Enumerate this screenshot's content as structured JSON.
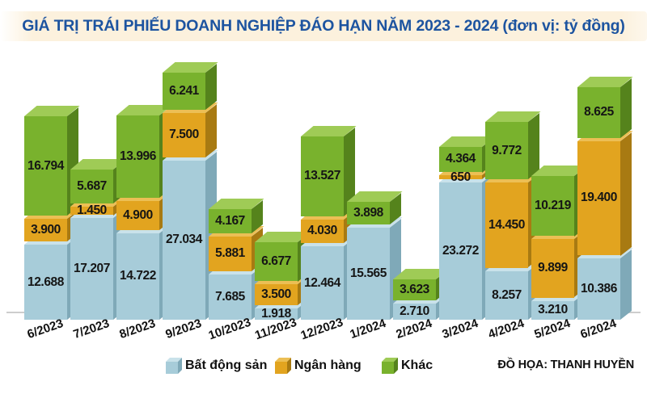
{
  "title": {
    "text": "GIÁ TRỊ TRÁI PHIẾU DOANH NGHIỆP ĐÁO HẠN NĂM 2023 - 2024 (đơn vị: tỷ đồng)",
    "color": "#1d54a0",
    "background": "#fcf1dd"
  },
  "hero": {
    "letters": [
      "T",
      "R",
      "Á",
      "I",
      "P",
      "H",
      "I",
      "Ế",
      "U"
    ]
  },
  "chart_data": {
    "type": "bar",
    "stacked": true,
    "title": "GIÁ TRỊ TRÁI PHIẾU DOANH NGHIỆP ĐÁO HẠN NĂM 2023 - 2024",
    "unit": "tỷ đồng",
    "grid": false,
    "legend_position": "bottom",
    "ylim": [
      0,
      41000
    ],
    "categories": [
      "6/2023",
      "7/2023",
      "8/2023",
      "9/2023",
      "10/2023",
      "11/2023",
      "12/2023",
      "1/2024",
      "2/2024",
      "3/2024",
      "4/2024",
      "5/2024",
      "6/2024"
    ],
    "series": [
      {
        "name": "Bất động sản",
        "slug": "bat-dong-san",
        "colors": {
          "front": "#a7ccd9",
          "top": "#c9e2ea",
          "side": "#7fa9b8"
        },
        "values": [
          12688,
          17207,
          14722,
          27034,
          7685,
          1918,
          12464,
          15565,
          2710,
          23272,
          8257,
          3210,
          10386
        ],
        "labels": [
          "12.688",
          "17.207",
          "14.722",
          "27.034",
          "7.685",
          "1.918",
          "12.464",
          "15.565",
          "2.710",
          "23.272",
          "8.257",
          "3.210",
          "10.386"
        ]
      },
      {
        "name": "Ngân hàng",
        "slug": "ngan-hang",
        "colors": {
          "front": "#e2a41f",
          "top": "#ecbf55",
          "side": "#a87a12"
        },
        "values": [
          3900,
          1450,
          4900,
          7500,
          5881,
          3500,
          4030,
          0,
          0,
          650,
          14450,
          9899,
          19400
        ],
        "labels": [
          "3.900",
          "1.450",
          "4.900",
          "7.500",
          "5.881",
          "3.500",
          "4.030",
          "",
          "",
          "650",
          "14.450",
          "9.899",
          "19.400"
        ]
      },
      {
        "name": "Khác",
        "slug": "khac",
        "colors": {
          "front": "#79b22d",
          "top": "#9fcb56",
          "side": "#55831c"
        },
        "values": [
          16794,
          5687,
          13996,
          6241,
          4167,
          6677,
          13527,
          3898,
          3623,
          4364,
          9772,
          10219,
          8625
        ],
        "labels": [
          "16.794",
          "5.687",
          "13.996",
          "6.241",
          "4.167",
          "6.677",
          "13.527",
          "3.898",
          "3.623",
          "4.364",
          "9.772",
          "10.219",
          "8.625"
        ]
      }
    ]
  },
  "legend": [
    {
      "label": "Bất động sản"
    },
    {
      "label": "Ngân hàng"
    },
    {
      "label": "Khác"
    }
  ],
  "credit": "ĐỒ HỌA: THANH HUYỀN"
}
